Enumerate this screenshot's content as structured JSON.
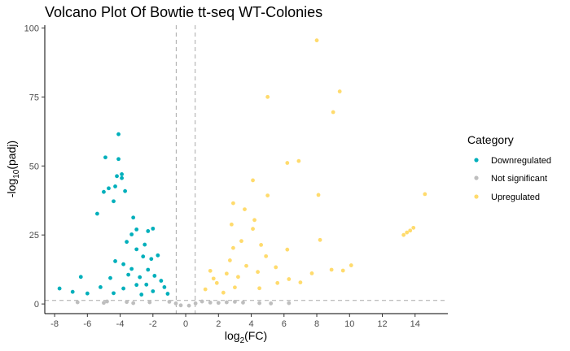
{
  "chart_data": {
    "type": "scatter",
    "title": "Volcano Plot Of Bowtie tt-seq WT-Colonies",
    "xlabel": "log2(FC)",
    "ylabel": "-log10(padj)",
    "xlim": [
      -8.6,
      16.0
    ],
    "ylim": [
      -3.5,
      101.0
    ],
    "xticks": [
      -8,
      -6,
      -4,
      -2,
      0,
      2,
      4,
      6,
      8,
      10,
      12,
      14
    ],
    "yticks": [
      0,
      25,
      50,
      75,
      100
    ],
    "thresholds": {
      "x": [
        -0.58,
        0.58
      ],
      "y": 1.3
    },
    "grid": false,
    "legend": {
      "title": "Category",
      "position": "right",
      "entries": [
        {
          "label": "Downregulated",
          "color": "#00AFBB"
        },
        {
          "label": "Not significant",
          "color": "#BEBEBE"
        },
        {
          "label": "Upregulated",
          "color": "#FFDB6D"
        }
      ]
    },
    "series": [
      {
        "name": "Downregulated",
        "color": "#00AFBB",
        "points": [
          [
            -4.1,
            61.5
          ],
          [
            -4.9,
            53.1
          ],
          [
            -4.1,
            52.5
          ],
          [
            -3.9,
            47.0
          ],
          [
            -4.2,
            46.3
          ],
          [
            -3.9,
            45.6
          ],
          [
            -4.3,
            42.6
          ],
          [
            -4.7,
            41.9
          ],
          [
            -5.0,
            40.6
          ],
          [
            -3.7,
            40.9
          ],
          [
            -4.4,
            37.2
          ],
          [
            -5.4,
            32.7
          ],
          [
            -3.2,
            31.3
          ],
          [
            -3.0,
            27.0
          ],
          [
            -2.3,
            26.4
          ],
          [
            -2.0,
            27.3
          ],
          [
            -3.3,
            25.2
          ],
          [
            -3.6,
            22.5
          ],
          [
            -2.5,
            21.5
          ],
          [
            -3.0,
            19.8
          ],
          [
            -4.3,
            15.5
          ],
          [
            -3.8,
            14.4
          ],
          [
            -2.6,
            17.2
          ],
          [
            -3.3,
            12.7
          ],
          [
            -2.1,
            16.3
          ],
          [
            -1.7,
            17.6
          ],
          [
            -2.3,
            12.4
          ],
          [
            -3.5,
            10.6
          ],
          [
            -6.4,
            9.8
          ],
          [
            -4.6,
            9.4
          ],
          [
            -2.8,
            9.7
          ],
          [
            -1.9,
            10.2
          ],
          [
            -5.2,
            6.1
          ],
          [
            -6.9,
            4.4
          ],
          [
            -7.7,
            5.6
          ],
          [
            -6.0,
            3.8
          ],
          [
            -1.5,
            8.4
          ],
          [
            -2.4,
            7.0
          ],
          [
            -3.0,
            6.9
          ],
          [
            -3.8,
            5.6
          ],
          [
            -1.3,
            6.1
          ],
          [
            -2.0,
            4.6
          ],
          [
            -4.4,
            3.9
          ],
          [
            -2.7,
            3.4
          ],
          [
            -1.1,
            3.7
          ]
        ]
      },
      {
        "name": "Not significant",
        "color": "#BEBEBE",
        "points": [
          [
            -6.6,
            0.6
          ],
          [
            -5.0,
            0.4
          ],
          [
            -3.6,
            0.7
          ],
          [
            -2.2,
            0.6
          ],
          [
            -1.0,
            0.8
          ],
          [
            -0.3,
            -0.5
          ],
          [
            0.2,
            -0.6
          ],
          [
            0.6,
            0.2
          ],
          [
            1.5,
            0.5
          ],
          [
            2.5,
            0.6
          ],
          [
            3.5,
            0.5
          ],
          [
            4.5,
            0.3
          ],
          [
            5.2,
            0.2
          ],
          [
            6.3,
            0.3
          ],
          [
            -4.8,
            0.9
          ],
          [
            -3.2,
            0.3
          ],
          [
            -0.6,
            0.2
          ],
          [
            1.0,
            0.9
          ],
          [
            2.0,
            0.4
          ],
          [
            3.0,
            0.8
          ]
        ]
      },
      {
        "name": "Upregulated",
        "color": "#FFDB6D",
        "points": [
          [
            8.0,
            95.5
          ],
          [
            9.4,
            77.0
          ],
          [
            5.0,
            75.0
          ],
          [
            9.0,
            69.5
          ],
          [
            6.9,
            51.8
          ],
          [
            6.2,
            51.1
          ],
          [
            14.6,
            39.8
          ],
          [
            8.1,
            39.5
          ],
          [
            5.0,
            39.3
          ],
          [
            4.1,
            44.8
          ],
          [
            13.9,
            27.6
          ],
          [
            13.7,
            26.6
          ],
          [
            13.5,
            25.9
          ],
          [
            13.3,
            25.0
          ],
          [
            2.9,
            36.5
          ],
          [
            3.6,
            34.3
          ],
          [
            4.2,
            30.4
          ],
          [
            4.1,
            27.2
          ],
          [
            8.2,
            23.2
          ],
          [
            2.8,
            28.8
          ],
          [
            6.2,
            19.7
          ],
          [
            2.9,
            20.3
          ],
          [
            3.4,
            22.8
          ],
          [
            4.6,
            21.4
          ],
          [
            2.7,
            15.8
          ],
          [
            4.9,
            17.3
          ],
          [
            3.7,
            13.8
          ],
          [
            10.1,
            14.0
          ],
          [
            8.9,
            12.4
          ],
          [
            5.5,
            13.3
          ],
          [
            2.5,
            11.0
          ],
          [
            1.5,
            12.0
          ],
          [
            3.2,
            9.8
          ],
          [
            4.4,
            11.6
          ],
          [
            7.7,
            11.1
          ],
          [
            1.7,
            9.2
          ],
          [
            6.3,
            9.0
          ],
          [
            5.6,
            7.6
          ],
          [
            7.0,
            7.8
          ],
          [
            1.9,
            7.6
          ],
          [
            3.0,
            6.0
          ],
          [
            4.5,
            5.7
          ],
          [
            1.2,
            5.3
          ],
          [
            2.3,
            4.1
          ],
          [
            9.6,
            12.1
          ]
        ]
      }
    ]
  }
}
